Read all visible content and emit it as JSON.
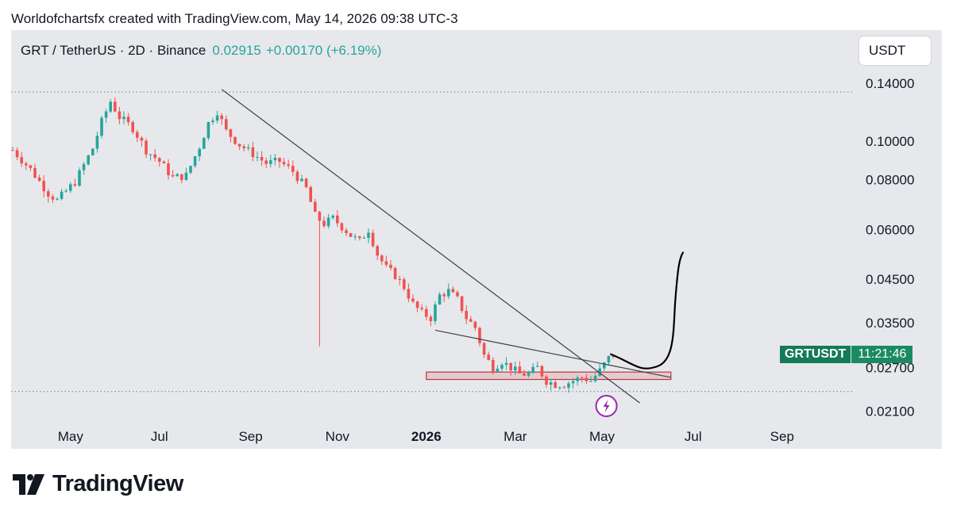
{
  "header": {
    "credit": "Worldofchartsfx created with TradingView.com, May 14, 2026 09:38 UTC-3"
  },
  "symbol": {
    "name": "GRT / TetherUS · 2D · Binance",
    "price": "0.02915",
    "change": "+0.00170 (+6.19%)"
  },
  "currency_button": "USDT",
  "ticker": {
    "name": "GRTUSDT",
    "timer": "11:21:46"
  },
  "brand": {
    "name": "TradingView"
  },
  "colors": {
    "up": "#26a69a",
    "down": "#ef5350",
    "panel": "#e7e8ec",
    "trendline": "#3c3f48",
    "box_fill": "#e3b2b4",
    "box_border": "#b23a48",
    "ticker_bg": "#157a57"
  },
  "chart_data": {
    "type": "candlestick",
    "symbol": "GRTUSDT",
    "interval": "2D",
    "scale": "log",
    "y_ticks": [
      "0.14000",
      "0.10000",
      "0.08000",
      "0.06000",
      "0.04500",
      "0.03500",
      "0.02700",
      "0.02100"
    ],
    "x_ticks": [
      "May",
      "Jul",
      "Sep",
      "Nov",
      "2026",
      "Mar",
      "May",
      "Jul",
      "Sep"
    ],
    "bold_x_ticks": [
      "2026"
    ],
    "ylim": [
      0.0175,
      0.18
    ],
    "current_price": 0.02915,
    "dotted_levels": [
      0.133,
      0.0235
    ],
    "price_path": [
      [
        0,
        0.095
      ],
      [
        4,
        0.085
      ],
      [
        8,
        0.074
      ],
      [
        10,
        0.071
      ],
      [
        14,
        0.079
      ],
      [
        18,
        0.096
      ],
      [
        20,
        0.112
      ],
      [
        22,
        0.126
      ],
      [
        24,
        0.115
      ],
      [
        27,
        0.108
      ],
      [
        30,
        0.095
      ],
      [
        33,
        0.089
      ],
      [
        36,
        0.081
      ],
      [
        39,
        0.082
      ],
      [
        42,
        0.097
      ],
      [
        44,
        0.111
      ],
      [
        46,
        0.119
      ],
      [
        48,
        0.106
      ],
      [
        51,
        0.098
      ],
      [
        54,
        0.093
      ],
      [
        57,
        0.088
      ],
      [
        60,
        0.089
      ],
      [
        63,
        0.084
      ],
      [
        66,
        0.076
      ],
      [
        68,
        0.065
      ],
      [
        70,
        0.062
      ],
      [
        72,
        0.064
      ],
      [
        74,
        0.061
      ],
      [
        76,
        0.058
      ],
      [
        78,
        0.056
      ],
      [
        80,
        0.06
      ],
      [
        82,
        0.052
      ],
      [
        84,
        0.048
      ],
      [
        86,
        0.046
      ],
      [
        88,
        0.043
      ],
      [
        90,
        0.039
      ],
      [
        92,
        0.037
      ],
      [
        94,
        0.036
      ],
      [
        96,
        0.041
      ],
      [
        98,
        0.042
      ],
      [
        100,
        0.04
      ],
      [
        102,
        0.036
      ],
      [
        104,
        0.034
      ],
      [
        106,
        0.029
      ],
      [
        108,
        0.027
      ],
      [
        110,
        0.028
      ],
      [
        112,
        0.027
      ],
      [
        114,
        0.026
      ],
      [
        116,
        0.026
      ],
      [
        118,
        0.027
      ],
      [
        120,
        0.025
      ],
      [
        122,
        0.0245
      ],
      [
        124,
        0.0245
      ],
      [
        126,
        0.025
      ],
      [
        128,
        0.0255
      ],
      [
        130,
        0.025
      ],
      [
        132,
        0.0265
      ],
      [
        134,
        0.0285
      ],
      [
        135,
        0.02915
      ]
    ],
    "spike_low": {
      "x": 69,
      "value": 0.0305
    },
    "projection": [
      [
        0.0291,
        0.029
      ],
      [
        0.0283,
        0.0268
      ],
      [
        0.0271,
        0.028
      ],
      [
        0.032,
        0.038
      ],
      [
        0.0455,
        0.052
      ]
    ],
    "trendlines": [
      {
        "from": [
          47,
          0.135
        ],
        "to": [
          141,
          0.022
        ]
      },
      {
        "from": [
          95,
          0.0335
        ],
        "to": [
          148,
          0.0255
        ]
      }
    ],
    "box": {
      "x_start": 93,
      "x_end": 148,
      "low": 0.0252,
      "high": 0.0263
    },
    "last_x": 135
  }
}
